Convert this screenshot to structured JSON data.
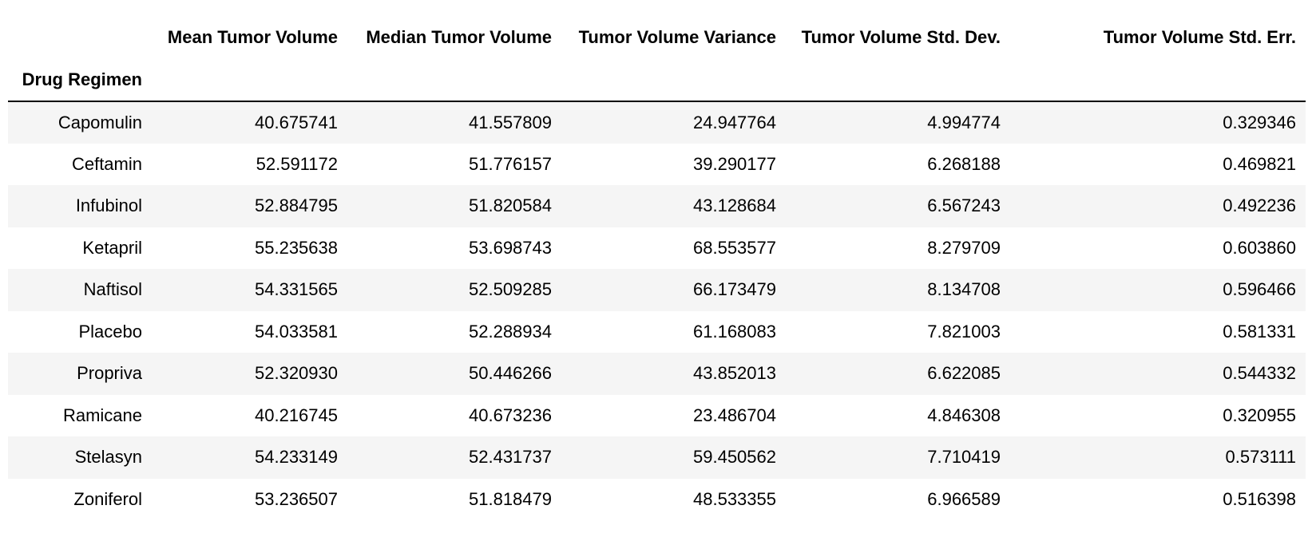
{
  "table": {
    "columns": [
      "Mean Tumor Volume",
      "Median Tumor Volume",
      "Tumor Volume Variance",
      "Tumor Volume Std. Dev.",
      "Tumor Volume Std. Err."
    ],
    "index_name": "Drug Regimen",
    "rows": [
      {
        "index": "Capomulin",
        "values": [
          "40.675741",
          "41.557809",
          "24.947764",
          "4.994774",
          "0.329346"
        ]
      },
      {
        "index": "Ceftamin",
        "values": [
          "52.591172",
          "51.776157",
          "39.290177",
          "6.268188",
          "0.469821"
        ]
      },
      {
        "index": "Infubinol",
        "values": [
          "52.884795",
          "51.820584",
          "43.128684",
          "6.567243",
          "0.492236"
        ]
      },
      {
        "index": "Ketapril",
        "values": [
          "55.235638",
          "53.698743",
          "68.553577",
          "8.279709",
          "0.603860"
        ]
      },
      {
        "index": "Naftisol",
        "values": [
          "54.331565",
          "52.509285",
          "66.173479",
          "8.134708",
          "0.596466"
        ]
      },
      {
        "index": "Placebo",
        "values": [
          "54.033581",
          "52.288934",
          "61.168083",
          "7.821003",
          "0.581331"
        ]
      },
      {
        "index": "Propriva",
        "values": [
          "52.320930",
          "50.446266",
          "43.852013",
          "6.622085",
          "0.544332"
        ]
      },
      {
        "index": "Ramicane",
        "values": [
          "40.216745",
          "40.673236",
          "23.486704",
          "4.846308",
          "0.320955"
        ]
      },
      {
        "index": "Stelasyn",
        "values": [
          "54.233149",
          "52.431737",
          "59.450562",
          "7.710419",
          "0.573111"
        ]
      },
      {
        "index": "Zoniferol",
        "values": [
          "53.236507",
          "51.818479",
          "48.533355",
          "6.966589",
          "0.516398"
        ]
      }
    ]
  },
  "colors": {
    "stripe": "#f5f5f5",
    "header_rule": "#000000"
  }
}
